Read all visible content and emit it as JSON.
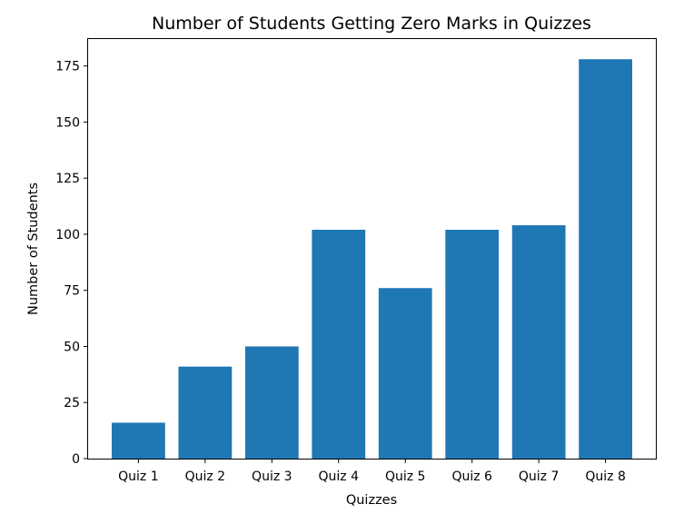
{
  "chart_data": {
    "type": "bar",
    "title": "Number of Students Getting Zero Marks in Quizzes",
    "xlabel": "Quizzes",
    "ylabel": "Number of Students",
    "categories": [
      "Quiz 1",
      "Quiz 2",
      "Quiz 3",
      "Quiz 4",
      "Quiz 5",
      "Quiz 6",
      "Quiz 7",
      "Quiz 8"
    ],
    "values": [
      16,
      41,
      50,
      102,
      76,
      102,
      104,
      178
    ],
    "ylim": [
      0,
      187
    ],
    "yticks": [
      0,
      25,
      50,
      75,
      100,
      125,
      150,
      175
    ],
    "bar_color": "#1f77b4",
    "grid": false
  }
}
